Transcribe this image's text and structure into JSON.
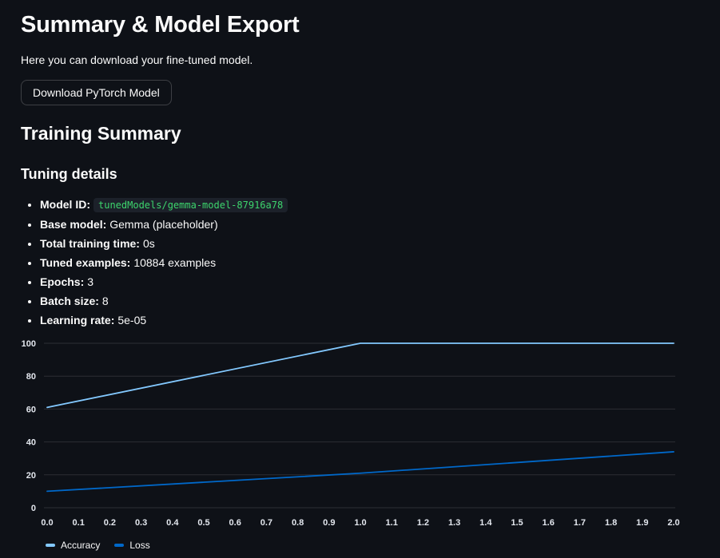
{
  "theme": {
    "background": "#0e1117",
    "text": "#fafafa",
    "grid": "rgba(250,250,250,0.13)",
    "axis_label": "#e3e7ee",
    "code_text": "#3dd56d",
    "code_bg": "#1c212a",
    "button_border": "rgba(250,250,250,0.2)"
  },
  "page": {
    "title": "Summary & Model Export",
    "subtitle": "Here you can download your fine-tuned model.",
    "download_button_label": "Download PyTorch Model",
    "section_heading": "Training Summary",
    "subsection_heading": "Tuning details"
  },
  "tuning_details": [
    {
      "label": "Model ID:",
      "value": "tunedModels/gemma-model-87916a78",
      "is_code": true
    },
    {
      "label": "Base model:",
      "value": "Gemma (placeholder)"
    },
    {
      "label": "Total training time:",
      "value": "0s"
    },
    {
      "label": "Tuned examples:",
      "value": "10884 examples"
    },
    {
      "label": "Epochs:",
      "value": "3"
    },
    {
      "label": "Batch size:",
      "value": "8"
    },
    {
      "label": "Learning rate:",
      "value": "5e-05"
    }
  ],
  "chart_data": {
    "type": "line",
    "x": [
      0,
      1,
      2
    ],
    "series": [
      {
        "name": "Accuracy",
        "color": "#83c9ff",
        "values": [
          61,
          100,
          100
        ]
      },
      {
        "name": "Loss",
        "color": "#0068c9",
        "values": [
          10,
          21,
          34
        ]
      }
    ],
    "xlim": [
      0,
      2
    ],
    "ylim": [
      0,
      100
    ],
    "x_ticks": [
      "0.0",
      "0.1",
      "0.2",
      "0.3",
      "0.4",
      "0.5",
      "0.6",
      "0.7",
      "0.8",
      "0.9",
      "1.0",
      "1.1",
      "1.2",
      "1.3",
      "1.4",
      "1.5",
      "1.6",
      "1.7",
      "1.8",
      "1.9",
      "2.0"
    ],
    "y_ticks": [
      0,
      20,
      40,
      60,
      80,
      100
    ],
    "title": "",
    "xlabel": "",
    "ylabel": "",
    "grid": "horizontal",
    "legend_position": "bottom-left",
    "legend": [
      "Accuracy",
      "Loss"
    ]
  }
}
